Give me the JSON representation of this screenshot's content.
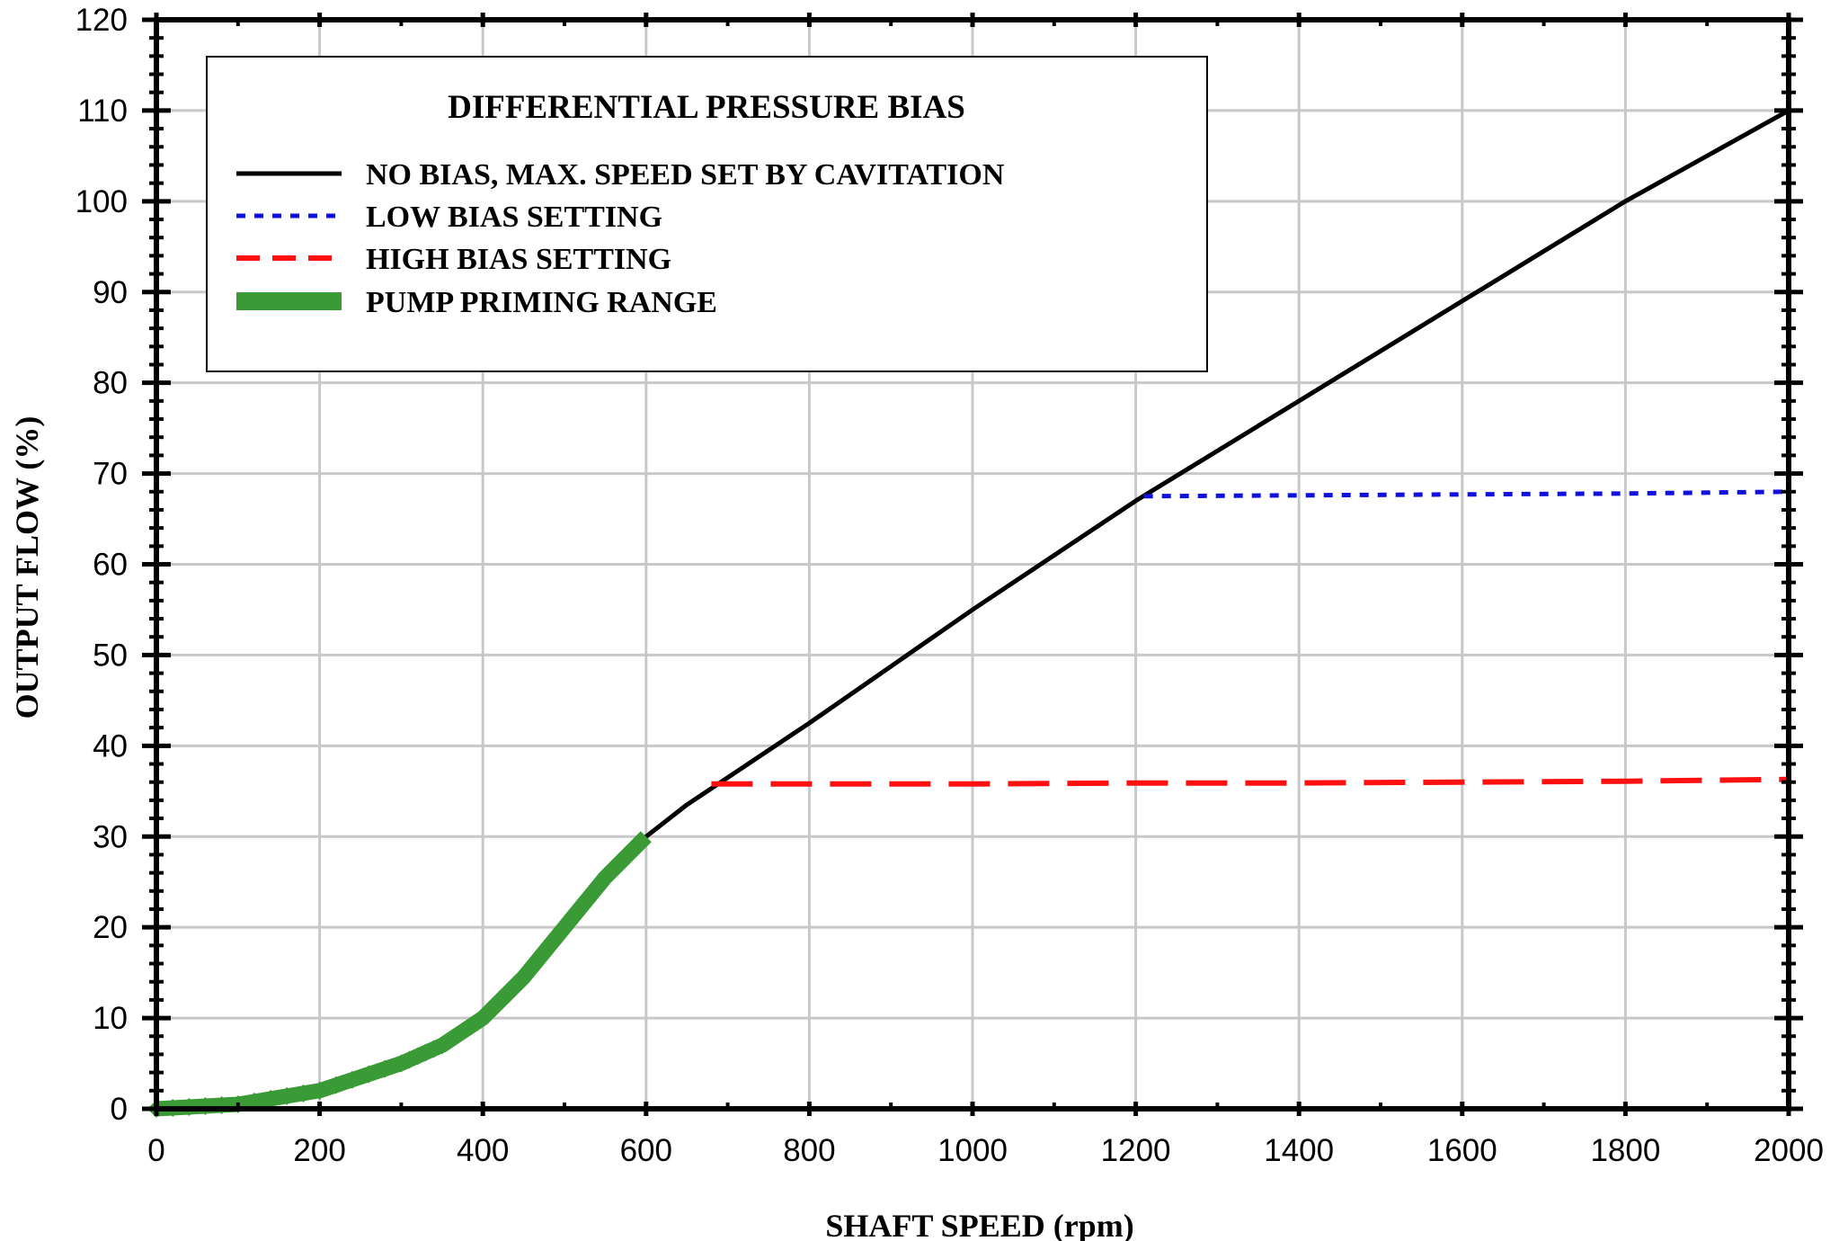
{
  "chart_data": {
    "type": "line",
    "title": "",
    "xlabel": "SHAFT SPEED (rpm)",
    "ylabel": "OUTPUT FLOW (%)",
    "xlim": [
      0,
      2000
    ],
    "ylim": [
      0,
      120
    ],
    "x_ticks": [
      "0",
      "200",
      "400",
      "600",
      "800",
      "1000",
      "1200",
      "1400",
      "1600",
      "1800",
      "2000"
    ],
    "y_ticks": [
      "0",
      "10",
      "20",
      "30",
      "40",
      "50",
      "60",
      "70",
      "80",
      "90",
      "100",
      "110",
      "120"
    ],
    "grid": true,
    "legend": {
      "title": "DIFFERENTIAL PRESSURE BIAS",
      "placement": "top-left"
    },
    "series": [
      {
        "name": "NO BIAS, MAX. SPEED SET BY CAVITATION",
        "color": "#000000",
        "style": "solid",
        "x": [
          0,
          100,
          200,
          300,
          350,
          400,
          450,
          500,
          550,
          600,
          650,
          700,
          800,
          1000,
          1200,
          1400,
          1600,
          1800,
          2000
        ],
        "y": [
          0,
          0.5,
          2,
          5,
          7,
          10,
          14.5,
          20,
          25.5,
          30,
          33.5,
          36.5,
          42.5,
          55,
          67,
          78,
          89,
          100,
          110
        ]
      },
      {
        "name": "LOW BIAS SETTING",
        "color": "#1010e0",
        "style": "dotted",
        "x": [
          1210,
          1400,
          1600,
          1800,
          2000
        ],
        "y": [
          67.5,
          67.6,
          67.7,
          67.8,
          68
        ]
      },
      {
        "name": "HIGH BIAS SETTING",
        "color": "#ff1010",
        "style": "dashed",
        "x": [
          680,
          1000,
          1200,
          1400,
          1600,
          1800,
          2000
        ],
        "y": [
          35.8,
          35.8,
          35.9,
          35.9,
          36,
          36.1,
          36.3
        ]
      },
      {
        "name": "PUMP PRIMING RANGE",
        "color": "#3a9a35",
        "style": "thick-diamond",
        "x": [
          0,
          100,
          200,
          300,
          350,
          400,
          450,
          500,
          550,
          600
        ],
        "y": [
          0,
          0.5,
          2,
          5,
          7,
          10,
          14.5,
          20,
          25.5,
          30
        ]
      }
    ]
  }
}
